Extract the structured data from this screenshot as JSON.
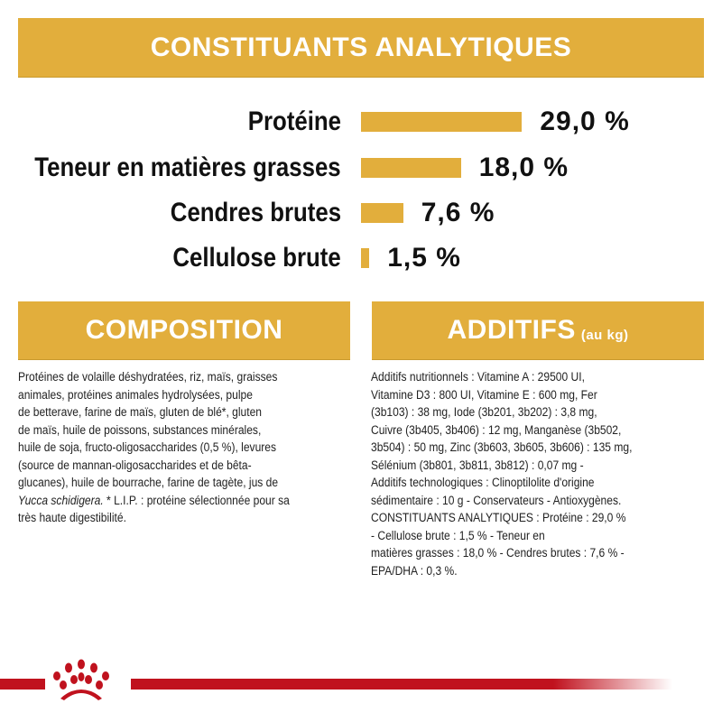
{
  "header": {
    "title": "CONSTITUANTS ANALYTIQUES"
  },
  "constituents": [
    {
      "label": "Protéine",
      "value": 29.0,
      "display": "29,0 %"
    },
    {
      "label": "Teneur en matières grasses",
      "value": 18.0,
      "display": "18,0 %"
    },
    {
      "label": "Cendres brutes",
      "value": 7.6,
      "display": "7,6 %"
    },
    {
      "label": "Cellulose brute",
      "value": 1.5,
      "display": "1,5 %"
    }
  ],
  "composition": {
    "title": "COMPOSITION",
    "lines": [
      "Protéines de volaille déshydratées, riz, maïs, graisses",
      "animales, protéines animales hydrolysées, pulpe",
      "de betterave, farine de maïs, gluten de blé*, gluten",
      "de maïs, huile de poissons, substances minérales,",
      "huile de soja, fructo-oligosaccharides (0,5 %), levures",
      "(source de mannan-oligosaccharides et de bêta-",
      "glucanes), huile de bourrache, farine de tagète, jus de"
    ],
    "italic": "Yucca schidigera.",
    "after_italic": " * L.I.P. : protéine sélectionnée pour sa",
    "last_line": "très haute digestibilité."
  },
  "additifs": {
    "title": "ADDITIFS",
    "unit": "(au kg)",
    "lines": [
      "Additifs nutritionnels : Vitamine A : 29500 UI,",
      "Vitamine D3 : 800 UI, Vitamine E : 600 mg, Fer",
      "(3b103) : 38 mg, Iode (3b201, 3b202) : 3,8 mg,",
      "Cuivre (3b405, 3b406) : 12 mg, Manganèse (3b502,",
      "3b504) : 50 mg, Zinc (3b603, 3b605, 3b606) : 135 mg,",
      "Sélénium (3b801, 3b811, 3b812) : 0,07 mg -",
      "Additifs technologiques : Clinoptilolite d'origine",
      "sédimentaire : 10 g - Conservateurs - Antioxygènes.",
      "CONSTITUANTS ANALYTIQUES : Protéine : 29,0 %",
      "- Cellulose brute : 1,5 % - Teneur en",
      "matières grasses : 18,0 % - Cendres brutes : 7,6 % -",
      "EPA/DHA : 0,3 %."
    ]
  },
  "colors": {
    "gold": "#E2AE3C",
    "brand_red": "#C0121E"
  },
  "logo": {
    "icon": "royal-canin-crown-logo-icon"
  }
}
